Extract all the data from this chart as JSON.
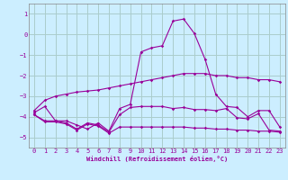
{
  "xlabel": "Windchill (Refroidissement éolien,°C)",
  "bg_color": "#cceeff",
  "line_color": "#990099",
  "grid_color": "#aacccc",
  "ylim": [
    -5.5,
    1.5
  ],
  "xlim": [
    -0.5,
    23.5
  ],
  "yticks": [
    1,
    0,
    -1,
    -2,
    -3,
    -4,
    -5
  ],
  "xticks": [
    0,
    1,
    2,
    3,
    4,
    5,
    6,
    7,
    8,
    9,
    10,
    11,
    12,
    13,
    14,
    15,
    16,
    17,
    18,
    19,
    20,
    21,
    22,
    23
  ],
  "lines": [
    {
      "x": [
        0,
        1,
        2,
        3,
        4,
        5,
        6,
        7,
        8,
        9,
        10,
        11,
        12,
        13,
        14,
        15,
        16,
        17,
        18,
        19,
        20,
        21,
        22,
        23
      ],
      "y": [
        -3.7,
        -3.2,
        -3.0,
        -2.9,
        -2.8,
        -2.75,
        -2.7,
        -2.6,
        -2.5,
        -2.4,
        -2.3,
        -2.2,
        -2.1,
        -2.0,
        -1.9,
        -1.9,
        -1.9,
        -2.0,
        -2.0,
        -2.1,
        -2.1,
        -2.2,
        -2.2,
        -2.3
      ]
    },
    {
      "x": [
        0,
        1,
        2,
        3,
        4,
        5,
        6,
        7,
        8,
        9,
        10,
        11,
        12,
        13,
        14,
        15,
        16,
        17,
        18,
        19,
        20,
        21,
        22,
        23
      ],
      "y": [
        -3.8,
        -3.5,
        -4.2,
        -4.2,
        -4.4,
        -4.6,
        -4.3,
        -4.7,
        -3.6,
        -3.4,
        -0.85,
        -0.65,
        -0.55,
        0.65,
        0.75,
        0.05,
        -1.2,
        -2.9,
        -3.5,
        -3.55,
        -4.0,
        -3.7,
        -3.7,
        -4.5
      ]
    },
    {
      "x": [
        0,
        1,
        2,
        3,
        4,
        5,
        6,
        7,
        8,
        9,
        10,
        11,
        12,
        13,
        14,
        15,
        16,
        17,
        18,
        19,
        20,
        21,
        22,
        23
      ],
      "y": [
        -3.9,
        -4.2,
        -4.2,
        -4.3,
        -4.6,
        -4.3,
        -4.4,
        -4.75,
        -3.9,
        -3.55,
        -3.5,
        -3.5,
        -3.5,
        -3.6,
        -3.55,
        -3.65,
        -3.65,
        -3.7,
        -3.6,
        -4.05,
        -4.1,
        -3.85,
        -4.65,
        -4.7
      ]
    },
    {
      "x": [
        0,
        1,
        2,
        3,
        4,
        5,
        6,
        7,
        8,
        9,
        10,
        11,
        12,
        13,
        14,
        15,
        16,
        17,
        18,
        19,
        20,
        21,
        22,
        23
      ],
      "y": [
        -3.9,
        -4.25,
        -4.25,
        -4.35,
        -4.65,
        -4.35,
        -4.45,
        -4.8,
        -4.5,
        -4.5,
        -4.5,
        -4.5,
        -4.5,
        -4.5,
        -4.5,
        -4.55,
        -4.55,
        -4.6,
        -4.6,
        -4.65,
        -4.65,
        -4.7,
        -4.7,
        -4.75
      ]
    }
  ]
}
